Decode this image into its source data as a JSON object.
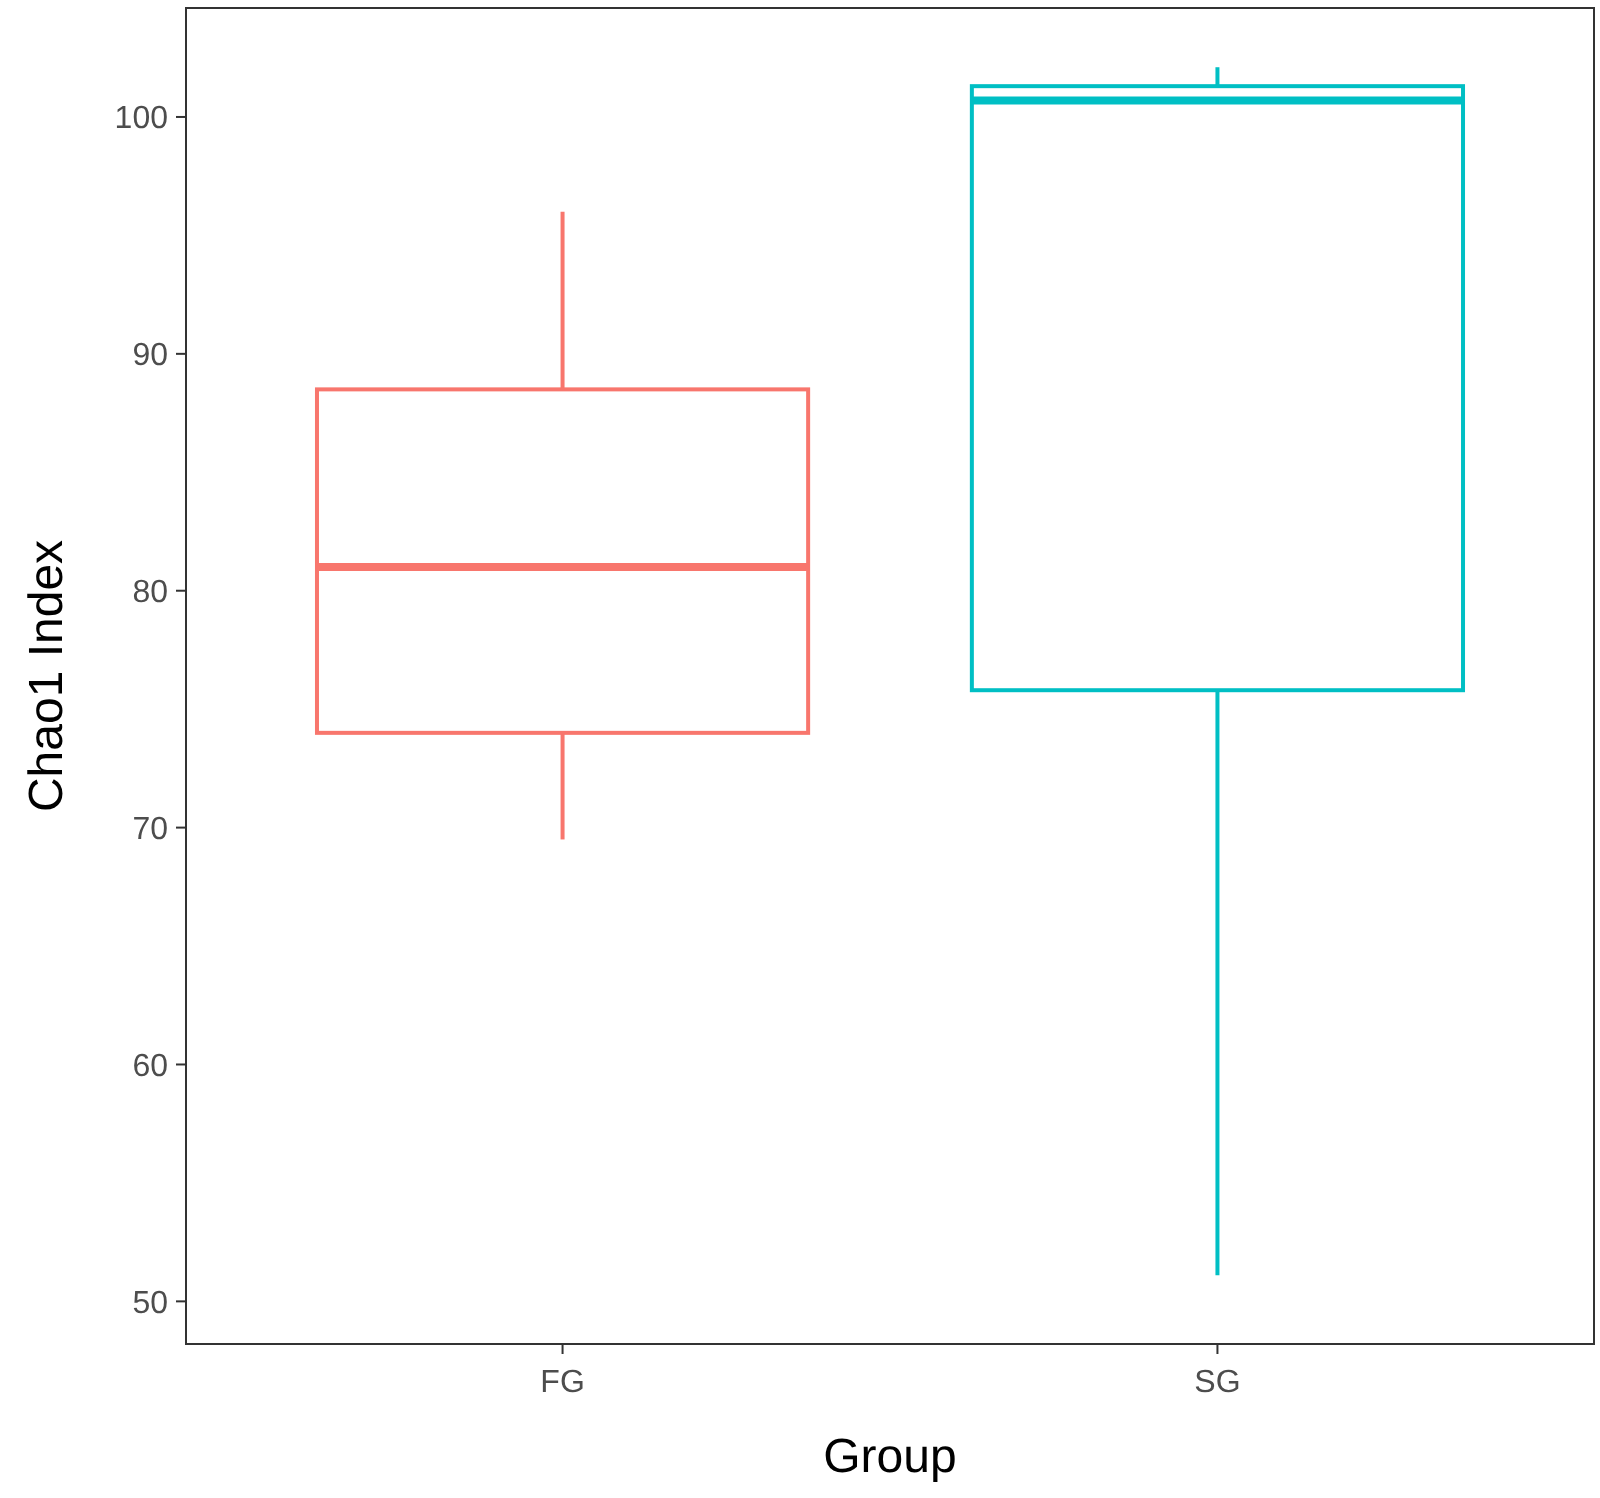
{
  "chart_data": {
    "type": "box",
    "xlabel": "Group",
    "ylabel": "Chao1  Index",
    "categories": [
      "FG",
      "SG"
    ],
    "boxes": [
      {
        "low": 69.5,
        "q1": 74,
        "median": 81,
        "q3": 88.5,
        "high": 96
      },
      {
        "low": 51.1,
        "q1": 75.8,
        "median": 100.7,
        "q3": 101.3,
        "high": 102.1
      }
    ],
    "colors": [
      "#f8766d",
      "#00bfc4"
    ],
    "ylim": [
      48.2,
      104.6
    ],
    "yticks": [
      50,
      60,
      70,
      80,
      90,
      100
    ]
  }
}
